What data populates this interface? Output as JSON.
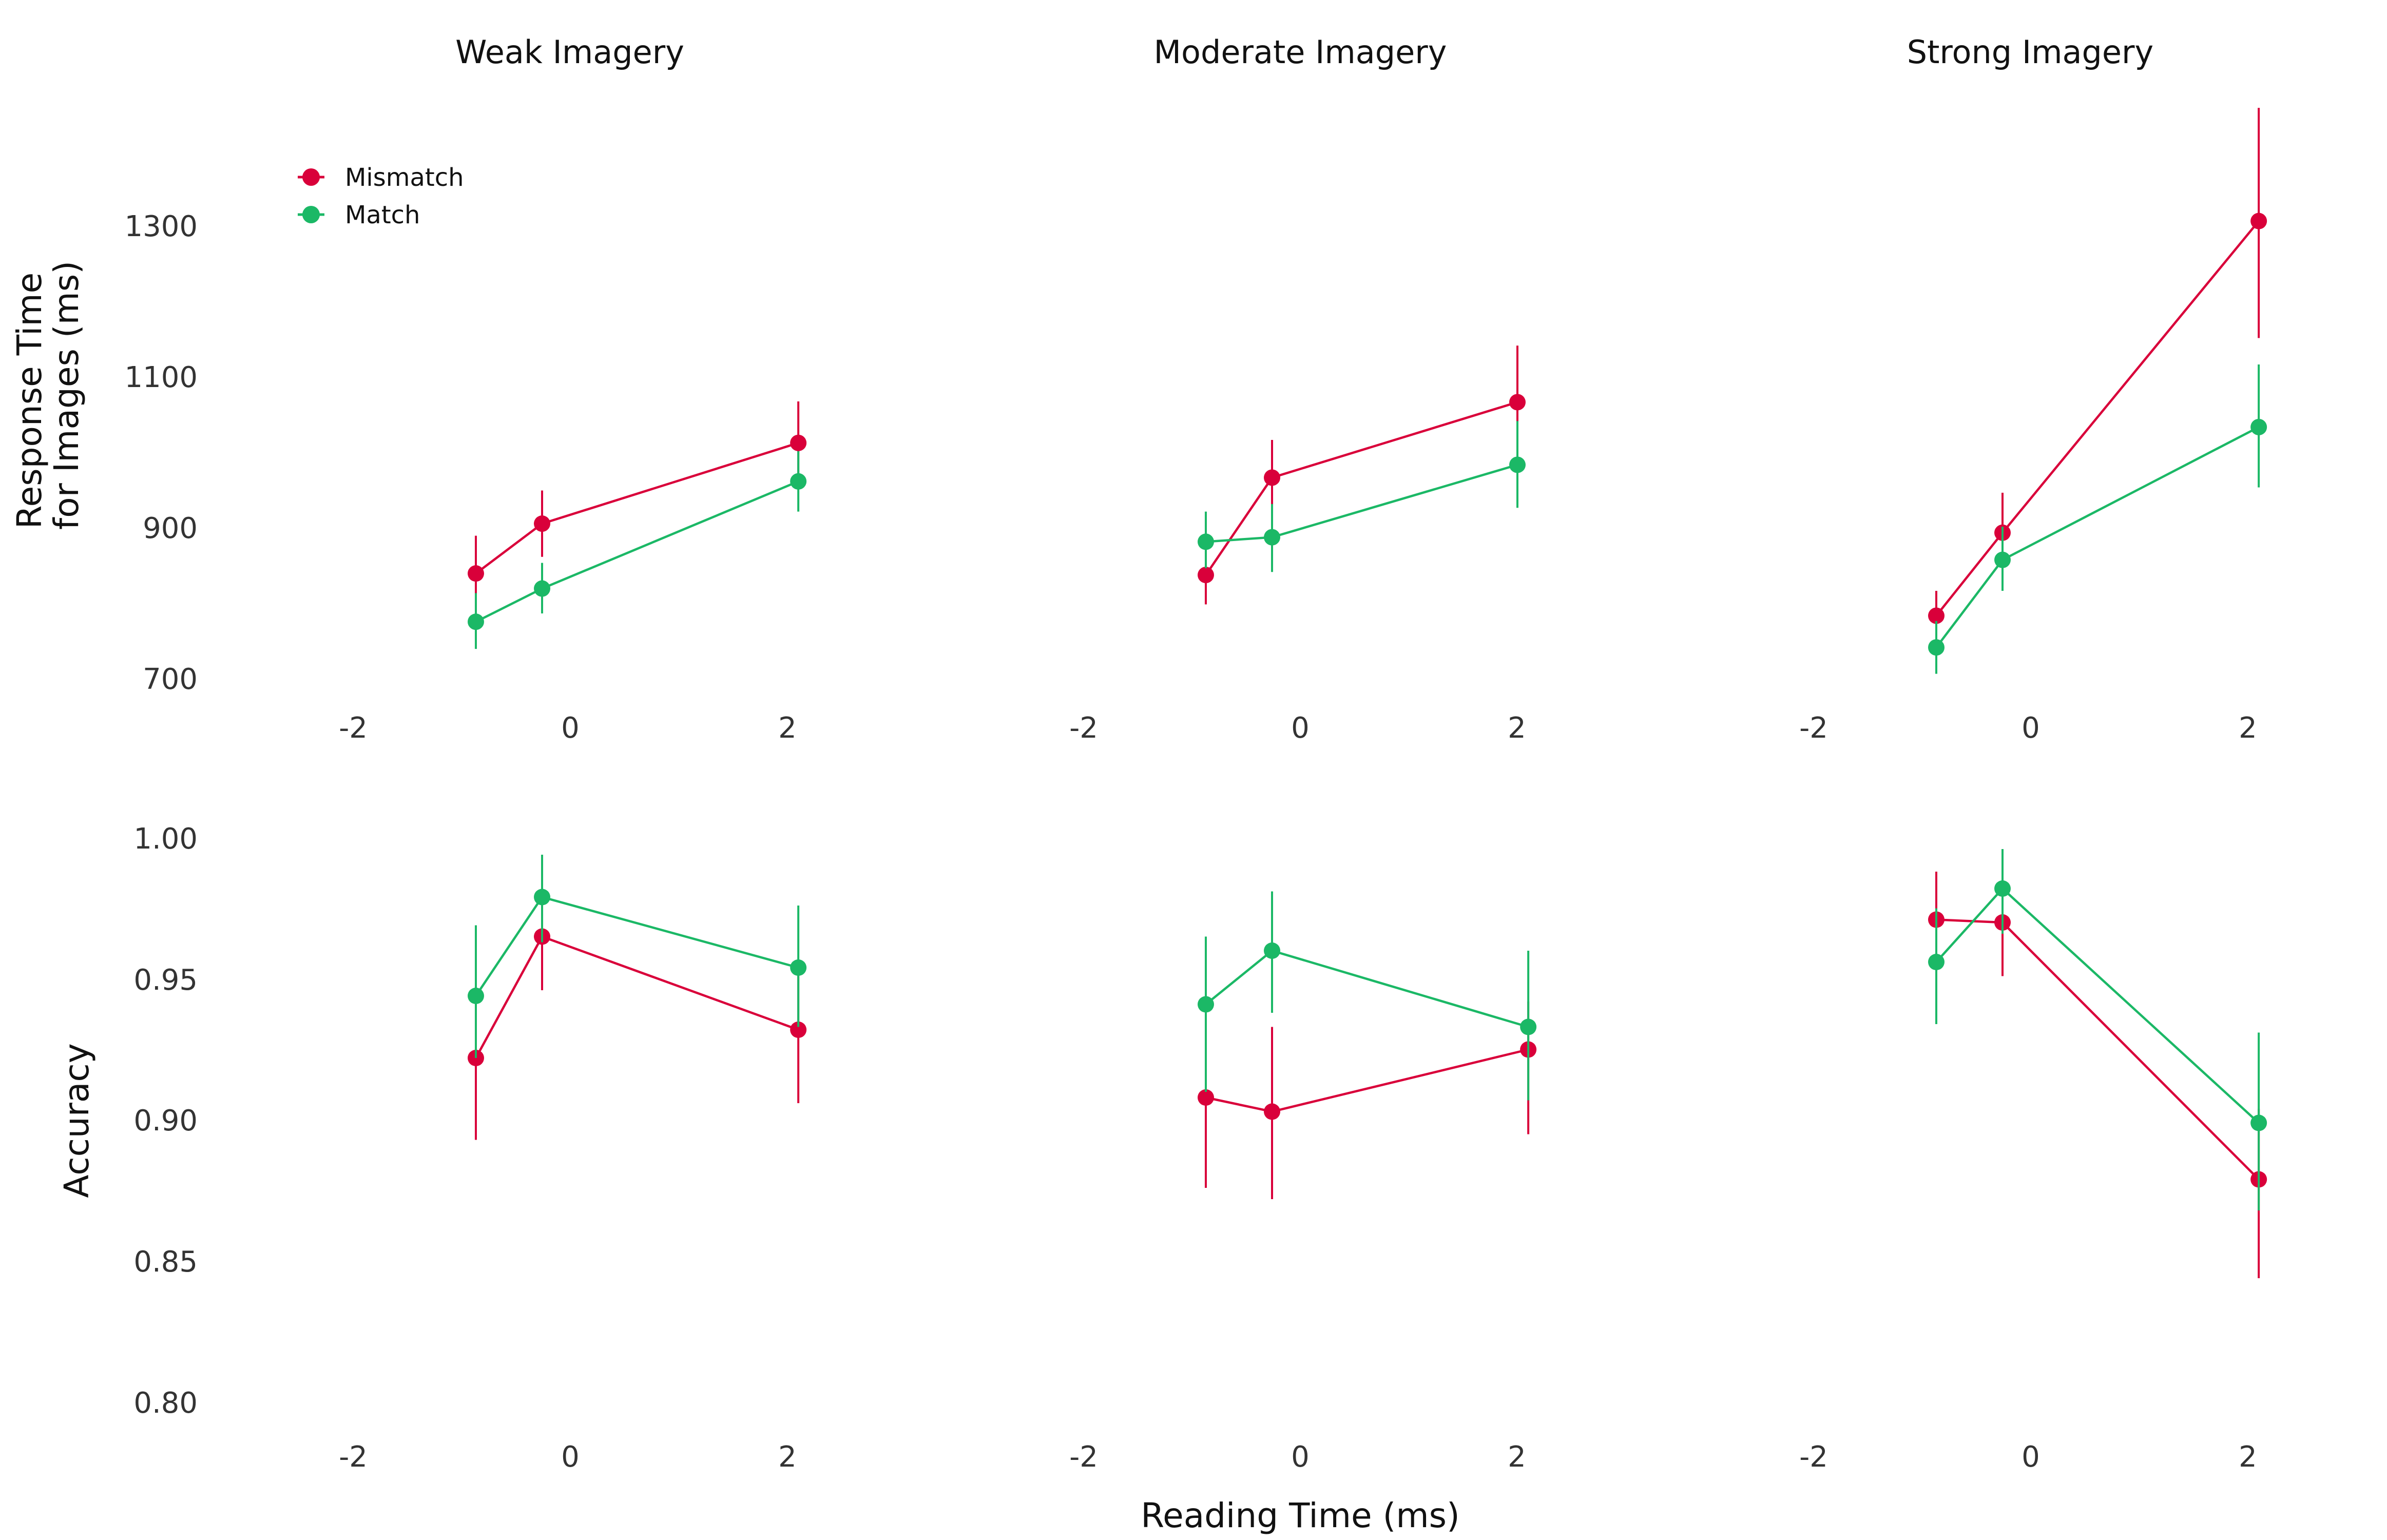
{
  "colors": {
    "Mismatch": "#d9003a",
    "Match": "#1bb866"
  },
  "legend": [
    "Mismatch",
    "Match"
  ],
  "facets": [
    "Weak Imagery",
    "Moderate Imagery",
    "Strong Imagery"
  ],
  "xlabel": "Reading Time (ms)",
  "ylabel_top": [
    "Response Time",
    "for Images (ms)"
  ],
  "ylabel_bottom": "Accuracy",
  "x_ticks": [
    "-2",
    "0",
    "2"
  ],
  "rt_ticks": [
    "700",
    "900",
    "1100",
    "1300"
  ],
  "acc_ticks": [
    "0.80",
    "0.85",
    "0.90",
    "0.95",
    "1.00"
  ],
  "chart_data": [
    {
      "type": "line",
      "facet": "Weak Imagery",
      "measure": "Response Time for Images (ms)",
      "xlim": [
        -2,
        2.4
      ],
      "ylim": [
        700,
        1300
      ],
      "series": [
        {
          "name": "Mismatch",
          "x": [
            -0.87,
            -0.26,
            2.1
          ],
          "y": [
            838,
            904,
            1011
          ],
          "err_low": [
            788,
            860,
            955
          ],
          "err_high": [
            888,
            948,
            1066
          ]
        },
        {
          "name": "Match",
          "x": [
            -0.87,
            -0.26,
            2.1
          ],
          "y": [
            774,
            818,
            960
          ],
          "err_low": [
            738,
            785,
            920
          ],
          "err_high": [
            812,
            852,
            1000
          ]
        }
      ]
    },
    {
      "type": "line",
      "facet": "Moderate Imagery",
      "measure": "Response Time for Images (ms)",
      "xlim": [
        -2,
        2.4
      ],
      "ylim": [
        700,
        1300
      ],
      "series": [
        {
          "name": "Mismatch",
          "x": [
            -0.87,
            -0.26,
            2.0
          ],
          "y": [
            836,
            965,
            1065
          ],
          "err_low": [
            797,
            918,
            988
          ],
          "err_high": [
            876,
            1015,
            1140
          ]
        },
        {
          "name": "Match",
          "x": [
            -0.87,
            -0.26,
            2.0
          ],
          "y": [
            880,
            886,
            982
          ],
          "err_low": [
            845,
            840,
            925
          ],
          "err_high": [
            920,
            930,
            1040
          ]
        }
      ]
    },
    {
      "type": "line",
      "facet": "Strong Imagery",
      "measure": "Response Time for Images (ms)",
      "xlim": [
        -2,
        2.4
      ],
      "ylim": [
        700,
        1300
      ],
      "series": [
        {
          "name": "Mismatch",
          "x": [
            -0.87,
            -0.26,
            2.1
          ],
          "y": [
            782,
            892,
            1305
          ],
          "err_low": [
            755,
            850,
            1150
          ],
          "err_high": [
            815,
            945,
            1455
          ]
        },
        {
          "name": "Match",
          "x": [
            -0.87,
            -0.26,
            2.1
          ],
          "y": [
            740,
            856,
            1032
          ],
          "err_low": [
            705,
            815,
            952
          ],
          "err_high": [
            775,
            900,
            1115
          ]
        }
      ]
    },
    {
      "type": "line",
      "facet": "Weak Imagery",
      "measure": "Accuracy",
      "xlim": [
        -2,
        2.4
      ],
      "ylim": [
        0.8,
        1.0
      ],
      "series": [
        {
          "name": "Mismatch",
          "x": [
            -0.87,
            -0.26,
            2.1
          ],
          "y": [
            0.922,
            0.965,
            0.932
          ],
          "err_low": [
            0.893,
            0.946,
            0.906
          ],
          "err_high": [
            0.944,
            0.982,
            0.953
          ]
        },
        {
          "name": "Match",
          "x": [
            -0.87,
            -0.26,
            2.1
          ],
          "y": [
            0.944,
            0.979,
            0.954
          ],
          "err_low": [
            0.922,
            0.963,
            0.933
          ],
          "err_high": [
            0.969,
            0.994,
            0.976
          ]
        }
      ]
    },
    {
      "type": "line",
      "facet": "Moderate Imagery",
      "measure": "Accuracy",
      "xlim": [
        -2,
        2.4
      ],
      "ylim": [
        0.8,
        1.0
      ],
      "series": [
        {
          "name": "Mismatch",
          "x": [
            -0.87,
            -0.26,
            2.1
          ],
          "y": [
            0.908,
            0.903,
            0.925
          ],
          "err_low": [
            0.876,
            0.872,
            0.895
          ],
          "err_high": [
            0.916,
            0.933,
            0.942
          ]
        },
        {
          "name": "Match",
          "x": [
            -0.87,
            -0.26,
            2.1
          ],
          "y": [
            0.941,
            0.96,
            0.933
          ],
          "err_low": [
            0.91,
            0.938,
            0.907
          ],
          "err_high": [
            0.965,
            0.981,
            0.96
          ]
        }
      ]
    },
    {
      "type": "line",
      "facet": "Strong Imagery",
      "measure": "Accuracy",
      "xlim": [
        -2,
        2.4
      ],
      "ylim": [
        0.8,
        1.0
      ],
      "series": [
        {
          "name": "Mismatch",
          "x": [
            -0.87,
            -0.26,
            2.1
          ],
          "y": [
            0.971,
            0.97,
            0.879
          ],
          "err_low": [
            0.946,
            0.951,
            0.844
          ],
          "err_high": [
            0.988,
            0.986,
            0.904
          ]
        },
        {
          "name": "Match",
          "x": [
            -0.87,
            -0.26,
            2.1
          ],
          "y": [
            0.956,
            0.982,
            0.899
          ],
          "err_low": [
            0.934,
            0.966,
            0.868
          ],
          "err_high": [
            0.975,
            0.996,
            0.931
          ]
        }
      ]
    }
  ]
}
